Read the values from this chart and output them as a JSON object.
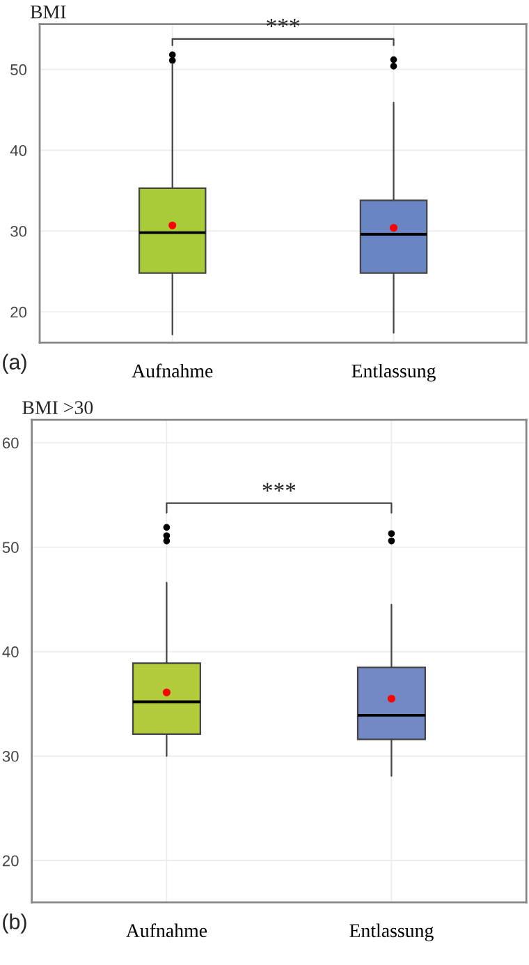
{
  "chart_data": [
    {
      "type": "box",
      "title": "BMI",
      "categories": [
        "Aufnahme",
        "Entlassung"
      ],
      "colors": [
        "#a9cb37",
        "#6a85c4"
      ],
      "boxes": [
        {
          "low": 17.2,
          "q1": 24.8,
          "median": 29.8,
          "q3": 35.3,
          "high": 50.6,
          "mean": 30.7,
          "outliers": [
            51.1,
            51.8
          ]
        },
        {
          "low": 17.4,
          "q1": 24.8,
          "median": 29.6,
          "q3": 33.8,
          "high": 45.9,
          "mean": 30.4,
          "outliers": [
            50.4,
            51.2
          ]
        }
      ],
      "ylim": [
        16.2,
        55.6
      ],
      "yticks": [
        20,
        30,
        40,
        50
      ],
      "grid": true,
      "annotations": [
        "***",
        "(a)"
      ]
    },
    {
      "type": "box",
      "title": "BMI >30",
      "categories": [
        "Aufnahme",
        "Entlassung"
      ],
      "colors": [
        "#b1cb3a",
        "#7289c6"
      ],
      "boxes": [
        {
          "low": 30.0,
          "q1": 32.1,
          "median": 35.2,
          "q3": 38.9,
          "high": 46.6,
          "mean": 36.1,
          "outliers": [
            50.6,
            51.1,
            51.9
          ]
        },
        {
          "low": 28.1,
          "q1": 31.6,
          "median": 33.9,
          "q3": 38.5,
          "high": 44.5,
          "mean": 35.5,
          "outliers": [
            50.6,
            51.3
          ]
        }
      ],
      "ylim": [
        16.0,
        62.2
      ],
      "yticks": [
        20,
        30,
        40,
        50,
        60
      ],
      "grid": true,
      "annotations": [
        "***",
        "(b)"
      ]
    }
  ]
}
